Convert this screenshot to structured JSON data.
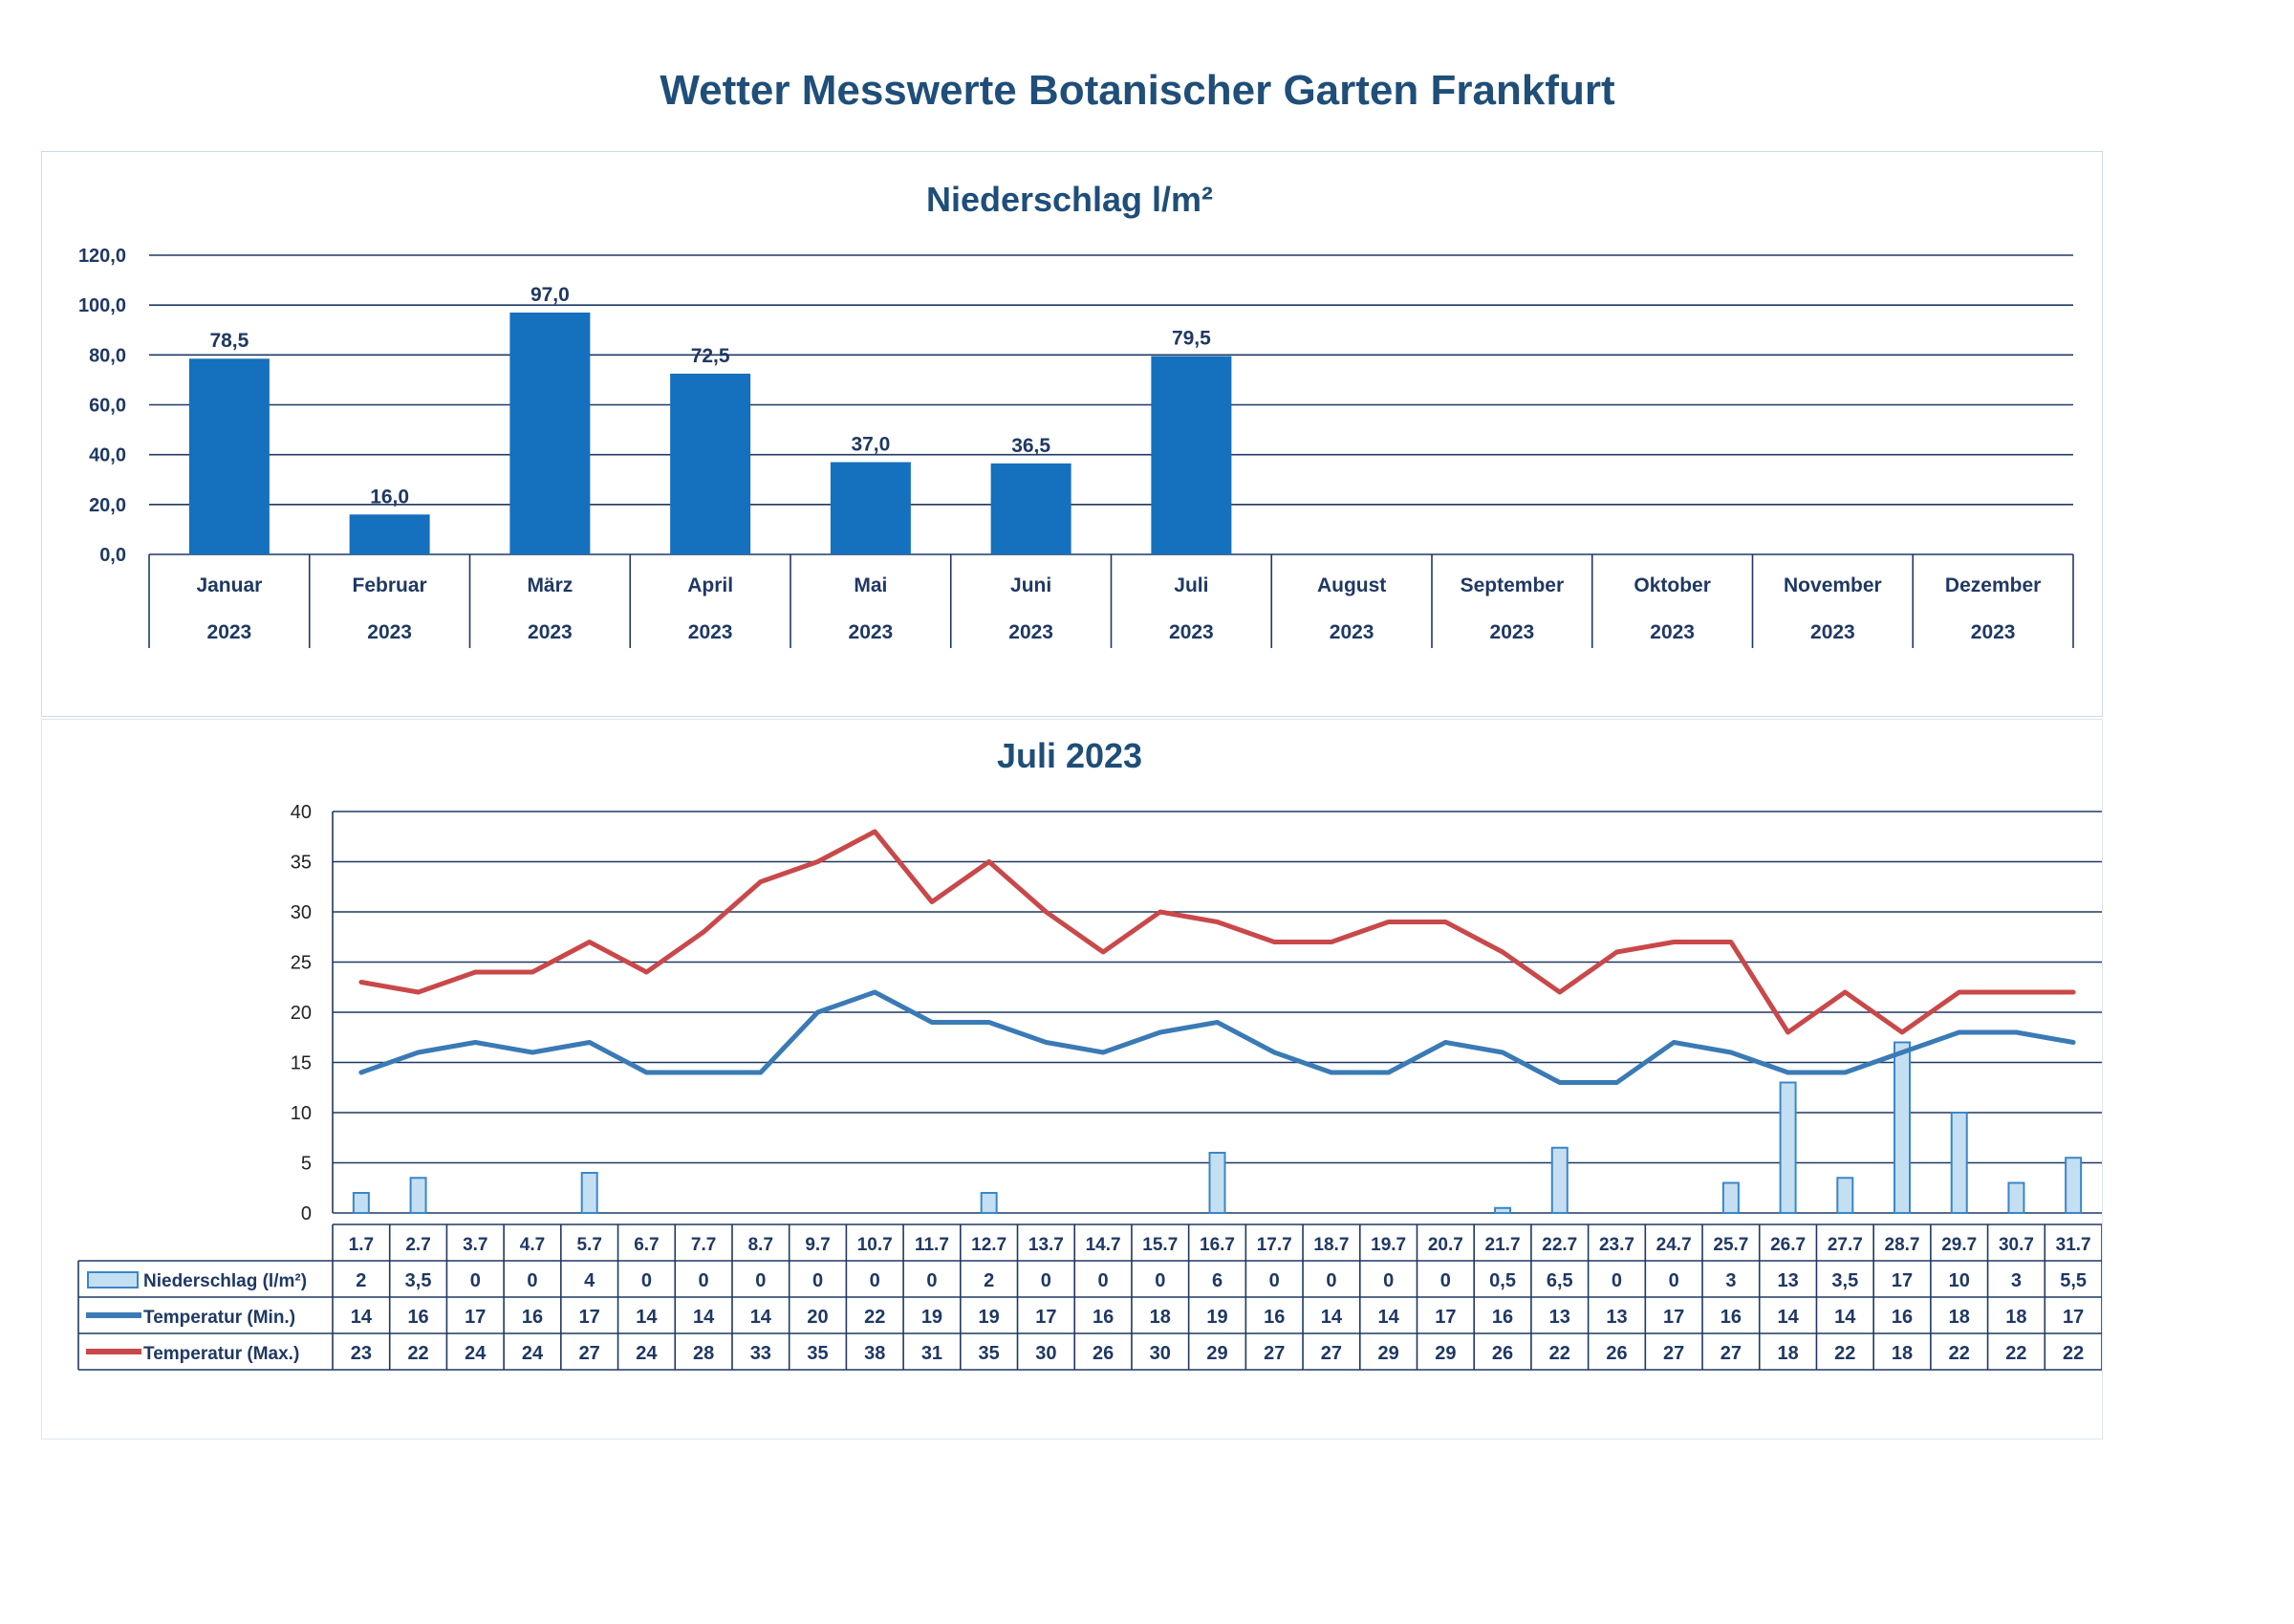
{
  "title": "Wetter Messwerte Botanischer Garten Frankfurt",
  "colors": {
    "title": "#1f4e79",
    "bar": "#1570bd",
    "grid": "#1f3864",
    "min_line": "#3a7ab5",
    "max_line": "#c9484a",
    "daily_bar_fill": "#c5dff2",
    "daily_bar_stroke": "#3a86c8"
  },
  "chart_data": [
    {
      "type": "bar",
      "title": "Niederschlag l/m²",
      "categories": [
        "Januar",
        "Februar",
        "März",
        "April",
        "Mai",
        "Juni",
        "Juli",
        "August",
        "September",
        "Oktober",
        "November",
        "Dezember"
      ],
      "category_sub": [
        "2023",
        "2023",
        "2023",
        "2023",
        "2023",
        "2023",
        "2023",
        "2023",
        "2023",
        "2023",
        "2023",
        "2023"
      ],
      "values": [
        78.5,
        16.0,
        97.0,
        72.5,
        37.0,
        36.5,
        79.5,
        null,
        null,
        null,
        null,
        null
      ],
      "value_labels": [
        "78,5",
        "16,0",
        "97,0",
        "72,5",
        "37,0",
        "36,5",
        "79,5",
        "",
        "",
        "",
        "",
        ""
      ],
      "yticks": [
        "0,0",
        "20,0",
        "40,0",
        "60,0",
        "80,0",
        "100,0",
        "120,0"
      ],
      "ylim": [
        0,
        120
      ],
      "grid": true
    },
    {
      "type": "line",
      "title": "Juli 2023",
      "categories": [
        "1.7",
        "2.7",
        "3.7",
        "4.7",
        "5.7",
        "6.7",
        "7.7",
        "8.7",
        "9.7",
        "10.7",
        "11.7",
        "12.7",
        "13.7",
        "14.7",
        "15.7",
        "16.7",
        "17.7",
        "18.7",
        "19.7",
        "20.7",
        "21.7",
        "22.7",
        "23.7",
        "24.7",
        "25.7",
        "26.7",
        "27.7",
        "28.7",
        "29.7",
        "30.7",
        "31.7"
      ],
      "yticks": [
        "0",
        "5",
        "10",
        "15",
        "20",
        "25",
        "30",
        "35",
        "40"
      ],
      "ylim": [
        0,
        40
      ],
      "grid": true,
      "legend": "data-table-left",
      "series": [
        {
          "name": "Niederschlag (l/m²)",
          "kind": "bar",
          "values": [
            2,
            3.5,
            0,
            0,
            4,
            0,
            0,
            0,
            0,
            0,
            0,
            2,
            0,
            0,
            0,
            6,
            0,
            0,
            0,
            0,
            0.5,
            6.5,
            0,
            0,
            3,
            13,
            3.5,
            17,
            10,
            3,
            5.5
          ],
          "labels": [
            "2",
            "3,5",
            "0",
            "0",
            "4",
            "0",
            "0",
            "0",
            "0",
            "0",
            "0",
            "2",
            "0",
            "0",
            "0",
            "6",
            "0",
            "0",
            "0",
            "0",
            "0,5",
            "6,5",
            "0",
            "0",
            "3",
            "13",
            "3,5",
            "17",
            "10",
            "3",
            "5,5"
          ]
        },
        {
          "name": "Temperatur (Min.)",
          "kind": "line",
          "values": [
            14,
            16,
            17,
            16,
            17,
            14,
            14,
            14,
            20,
            22,
            19,
            19,
            17,
            16,
            18,
            19,
            16,
            14,
            14,
            17,
            16,
            13,
            13,
            17,
            16,
            14,
            14,
            16,
            18,
            18,
            17
          ],
          "labels": [
            "14",
            "16",
            "17",
            "16",
            "17",
            "14",
            "14",
            "14",
            "20",
            "22",
            "19",
            "19",
            "17",
            "16",
            "18",
            "19",
            "16",
            "14",
            "14",
            "17",
            "16",
            "13",
            "13",
            "17",
            "16",
            "14",
            "14",
            "16",
            "18",
            "18",
            "17"
          ]
        },
        {
          "name": "Temperatur (Max.)",
          "kind": "line",
          "values": [
            23,
            22,
            24,
            24,
            27,
            24,
            28,
            33,
            35,
            38,
            31,
            35,
            30,
            26,
            30,
            29,
            27,
            27,
            29,
            29,
            26,
            22,
            26,
            27,
            27,
            18,
            22,
            18,
            22,
            22,
            22
          ],
          "labels": [
            "23",
            "22",
            "24",
            "24",
            "27",
            "24",
            "28",
            "33",
            "35",
            "38",
            "31",
            "35",
            "30",
            "26",
            "30",
            "29",
            "27",
            "27",
            "29",
            "29",
            "26",
            "22",
            "26",
            "27",
            "27",
            "18",
            "22",
            "18",
            "22",
            "22",
            "22"
          ]
        }
      ]
    }
  ]
}
